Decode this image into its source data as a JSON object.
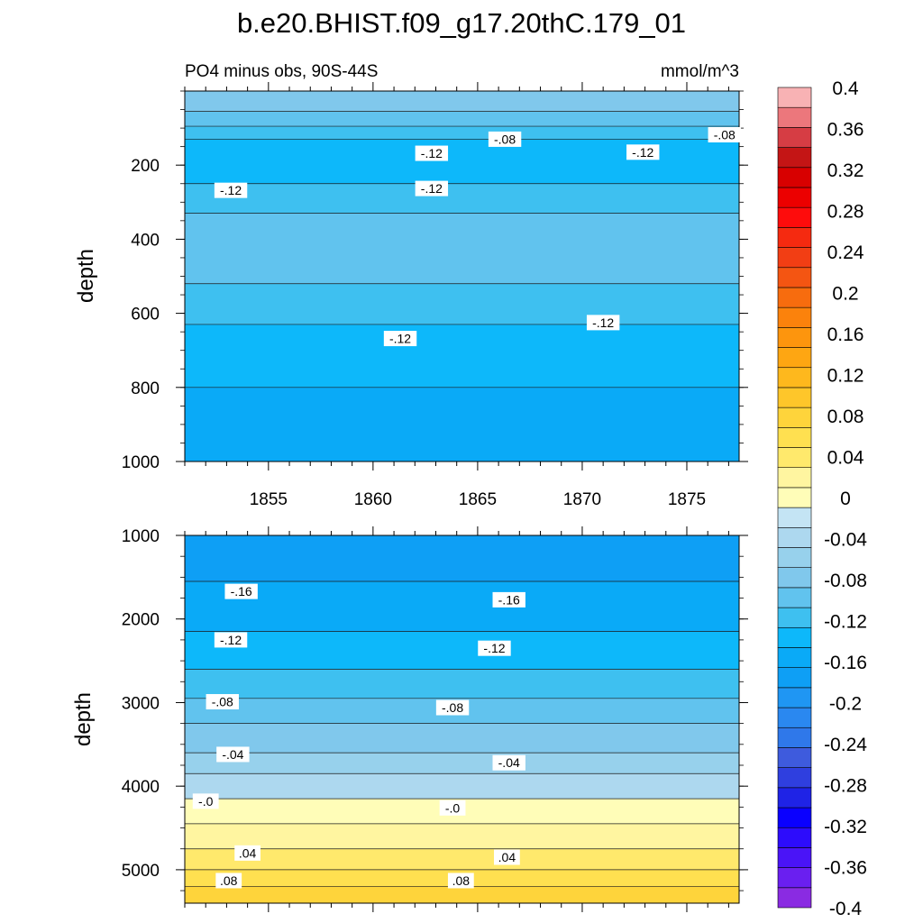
{
  "chart_data": {
    "type": "contour",
    "title": "b.e20.BHIST.f09_g17.20thC.179_01",
    "subtitle_left": "PO4 minus obs, 90S-44S",
    "subtitle_right": "mmol/m^3",
    "ylabel": "depth",
    "x_ticks": [
      1855,
      1860,
      1865,
      1870,
      1875
    ],
    "xlim": [
      1851,
      1877.5
    ],
    "colorbar": {
      "levels": [
        -0.4,
        -0.38,
        -0.36,
        -0.34,
        -0.32,
        -0.3,
        -0.28,
        -0.26,
        -0.24,
        -0.22,
        -0.2,
        -0.18,
        -0.16,
        -0.14,
        -0.12,
        -0.1,
        -0.08,
        -0.06,
        -0.04,
        -0.02,
        0,
        0.02,
        0.04,
        0.06,
        0.08,
        0.1,
        0.12,
        0.14,
        0.16,
        0.18,
        0.2,
        0.22,
        0.24,
        0.26,
        0.28,
        0.3,
        0.32,
        0.34,
        0.36,
        0.38,
        0.4
      ],
      "colors": [
        "#8a2be2",
        "#6a1ff0",
        "#4a14f7",
        "#2d0cfc",
        "#0a00ff",
        "#1f23e6",
        "#2f3fdf",
        "#3e5bdd",
        "#2f78ea",
        "#2a88f0",
        "#1f96f3",
        "#0e9ff5",
        "#0aaaf7",
        "#0db8fa",
        "#3ec0f0",
        "#61c3ee",
        "#80c8ec",
        "#97d1ec",
        "#add8ef",
        "#c4e4f4",
        "#fffdb8",
        "#fff5a0",
        "#ffe96c",
        "#ffe050",
        "#fed43b",
        "#fec62a",
        "#feb81d",
        "#fea612",
        "#fd950d",
        "#fb820c",
        "#f76c0e",
        "#f45512",
        "#f23e14",
        "#f52a10",
        "#fe0c0c",
        "#ec0000",
        "#d80000",
        "#c41515",
        "#d63d44",
        "#ec777c",
        "#f8b2b4"
      ],
      "tick_labels": [
        "0.4",
        "0.36",
        "0.32",
        "0.28",
        "0.24",
        "0.2",
        "0.16",
        "0.12",
        "0.08",
        "0.04",
        "0",
        "-0.04",
        "-0.08",
        "-0.12",
        "-0.16",
        "-0.2",
        "-0.24",
        "-0.28",
        "-0.32",
        "-0.36",
        "-0.4"
      ]
    },
    "panels": [
      {
        "name": "upper",
        "ylim": [
          1000,
          0
        ],
        "y_ticks": [
          200,
          400,
          600,
          800,
          1000
        ],
        "bands": [
          {
            "value": -0.07,
            "y_start": 0,
            "y_end": 55
          },
          {
            "value": -0.09,
            "y_start": 55,
            "y_end": 95
          },
          {
            "value": -0.11,
            "y_start": 95,
            "y_end": 130
          },
          {
            "value": -0.13,
            "y_start": 130,
            "y_end": 250
          },
          {
            "value": -0.11,
            "y_start": 250,
            "y_end": 330
          },
          {
            "value": -0.09,
            "y_start": 330,
            "y_end": 520
          },
          {
            "value": -0.11,
            "y_start": 520,
            "y_end": 630
          },
          {
            "value": -0.13,
            "y_start": 630,
            "y_end": 800
          },
          {
            "value": -0.15,
            "y_start": 800,
            "y_end": 1000
          }
        ],
        "contour_labels": [
          {
            "text": "-.08",
            "year": 1866.3,
            "depth": 130
          },
          {
            "text": "-.08",
            "year": 1876.8,
            "depth": 118
          },
          {
            "text": "-.12",
            "year": 1862.8,
            "depth": 168
          },
          {
            "text": "-.12",
            "year": 1872.9,
            "depth": 165
          },
          {
            "text": "-.12",
            "year": 1853.2,
            "depth": 268
          },
          {
            "text": "-.12",
            "year": 1862.8,
            "depth": 263
          },
          {
            "text": "-.12",
            "year": 1871.0,
            "depth": 625
          },
          {
            "text": "-.12",
            "year": 1861.3,
            "depth": 668
          }
        ]
      },
      {
        "name": "lower",
        "ylim": [
          5400,
          1000
        ],
        "y_ticks": [
          1000,
          2000,
          3000,
          4000,
          5000
        ],
        "bands": [
          {
            "value": -0.17,
            "y_start": 1000,
            "y_end": 1550
          },
          {
            "value": -0.15,
            "y_start": 1550,
            "y_end": 2150
          },
          {
            "value": -0.13,
            "y_start": 2150,
            "y_end": 2600
          },
          {
            "value": -0.11,
            "y_start": 2600,
            "y_end": 2950
          },
          {
            "value": -0.09,
            "y_start": 2950,
            "y_end": 3250
          },
          {
            "value": -0.07,
            "y_start": 3250,
            "y_end": 3600
          },
          {
            "value": -0.05,
            "y_start": 3600,
            "y_end": 3850
          },
          {
            "value": -0.03,
            "y_start": 3850,
            "y_end": 4150
          },
          {
            "value": 0.01,
            "y_start": 4150,
            "y_end": 4450
          },
          {
            "value": 0.03,
            "y_start": 4450,
            "y_end": 4750
          },
          {
            "value": 0.05,
            "y_start": 4750,
            "y_end": 5000
          },
          {
            "value": 0.07,
            "y_start": 5000,
            "y_end": 5200
          },
          {
            "value": 0.09,
            "y_start": 5200,
            "y_end": 5400
          }
        ],
        "contour_labels": [
          {
            "text": "-.16",
            "year": 1853.7,
            "depth": 1670
          },
          {
            "text": "-.16",
            "year": 1866.5,
            "depth": 1770
          },
          {
            "text": "-.12",
            "year": 1853.2,
            "depth": 2250
          },
          {
            "text": "-.12",
            "year": 1865.8,
            "depth": 2350
          },
          {
            "text": "-.08",
            "year": 1852.8,
            "depth": 2990
          },
          {
            "text": "-.08",
            "year": 1863.8,
            "depth": 3060
          },
          {
            "text": "-.04",
            "year": 1853.3,
            "depth": 3620
          },
          {
            "text": "-.04",
            "year": 1866.5,
            "depth": 3720
          },
          {
            "text": "-.0",
            "year": 1852.0,
            "depth": 4180
          },
          {
            "text": "-.0",
            "year": 1863.8,
            "depth": 4260
          },
          {
            "text": ".04",
            "year": 1854.0,
            "depth": 4800
          },
          {
            "text": ".04",
            "year": 1866.4,
            "depth": 4850
          },
          {
            "text": ".08",
            "year": 1853.1,
            "depth": 5130
          },
          {
            "text": ".08",
            "year": 1864.2,
            "depth": 5130
          }
        ]
      }
    ]
  }
}
